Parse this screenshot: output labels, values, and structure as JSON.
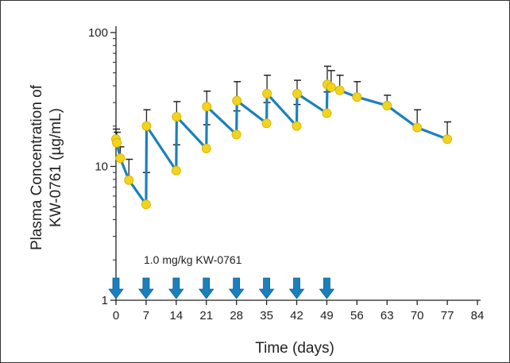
{
  "chart_data": {
    "type": "line",
    "xlabel": "Time (days)",
    "ylabel_line1": "Plasma Concentration of",
    "ylabel_line2": "KW-0761 (µg/mL)",
    "x_ticks": [
      0,
      7,
      14,
      21,
      28,
      35,
      42,
      49,
      56,
      63,
      70,
      77,
      84
    ],
    "xlim": [
      0,
      84
    ],
    "y_scale": "log",
    "ylim": [
      1,
      100
    ],
    "y_ticks": [
      1,
      10,
      100
    ],
    "y_tick_labels": [
      "1",
      "10",
      "100"
    ],
    "annotation": "1.0 mg/kg KW-0761",
    "dosing_days": [
      0,
      7,
      14,
      21,
      28,
      35,
      42,
      49
    ],
    "colors": {
      "line": "#1a80bd",
      "marker": "#f2d321",
      "marker_edge": "#d9b800",
      "dose_arrow": "#1a80bd",
      "error_bar": "#222222"
    },
    "series": [
      {
        "points": [
          {
            "x": 0,
            "y": 16.0,
            "err": 19.0
          },
          {
            "x": 0.2,
            "y": 15.0,
            "err": 18.0
          },
          {
            "x": 1,
            "y": 11.5,
            "err": 14.0
          },
          {
            "x": 3,
            "y": 7.9,
            "err": 11.3
          },
          {
            "x": 7,
            "y": 5.2,
            "err": 9.0
          },
          {
            "x": 7.1,
            "y": 20.0,
            "err": 26.5
          },
          {
            "x": 14,
            "y": 9.3,
            "err": 14.5
          },
          {
            "x": 14.1,
            "y": 23.5,
            "err": 30.5
          },
          {
            "x": 21,
            "y": 13.6,
            "err": 20.5
          },
          {
            "x": 21.1,
            "y": 28.0,
            "err": 36.5
          },
          {
            "x": 28,
            "y": 17.3,
            "err": 26.0
          },
          {
            "x": 28.1,
            "y": 31.0,
            "err": 43.0
          },
          {
            "x": 35,
            "y": 21.0,
            "err": 30.0
          },
          {
            "x": 35.1,
            "y": 35.0,
            "err": 48.0
          },
          {
            "x": 42,
            "y": 20.0,
            "err": 29.0
          },
          {
            "x": 42.1,
            "y": 35.0,
            "err": 44.0
          },
          {
            "x": 49,
            "y": 25.0,
            "err": 36.0
          },
          {
            "x": 49.1,
            "y": 41.0,
            "err": 56.0
          },
          {
            "x": 50,
            "y": 39.0,
            "err": 52.0
          },
          {
            "x": 52,
            "y": 37.0,
            "err": 48.0
          },
          {
            "x": 56,
            "y": 33.0,
            "err": 43.0
          },
          {
            "x": 63,
            "y": 28.5,
            "err": 34.0
          },
          {
            "x": 70,
            "y": 19.5,
            "err": 26.5
          },
          {
            "x": 77,
            "y": 16.0,
            "err": 21.5
          }
        ]
      }
    ]
  }
}
